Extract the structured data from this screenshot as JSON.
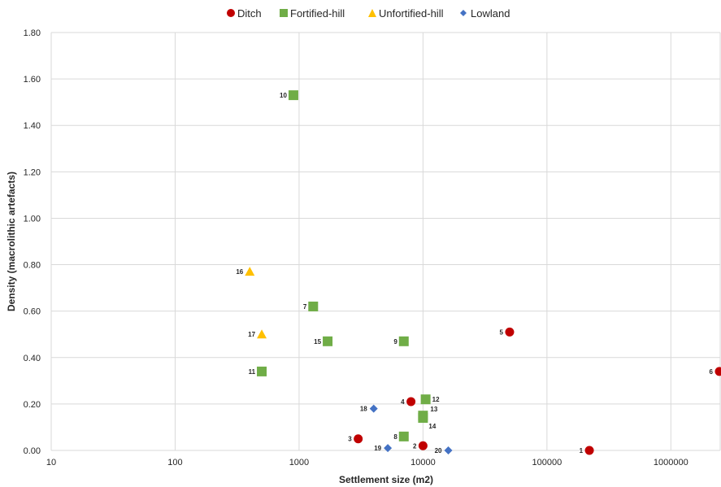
{
  "chart_data": {
    "type": "scatter",
    "x_scale": "log",
    "xlabel": "Settlement size (m2)",
    "ylabel": "Density (macrolithic artefacts)",
    "xlim": [
      10,
      2500000
    ],
    "ylim": [
      0,
      1.8
    ],
    "x_ticks": [
      "10",
      "100",
      "1000",
      "10000",
      "100000",
      "1000000"
    ],
    "y_ticks": [
      "0.00",
      "0.20",
      "0.40",
      "0.60",
      "0.80",
      "1.00",
      "1.20",
      "1.40",
      "1.60",
      "1.80"
    ],
    "grid": true,
    "legend_position": "top",
    "series": [
      {
        "name": "Ditch",
        "marker": "circle",
        "color": "#c00000",
        "points": [
          {
            "label": "1",
            "x": 220000,
            "y": 0.0
          },
          {
            "label": "2",
            "x": 10000,
            "y": 0.02
          },
          {
            "label": "3",
            "x": 3000,
            "y": 0.05
          },
          {
            "label": "4",
            "x": 8000,
            "y": 0.21
          },
          {
            "label": "5",
            "x": 50000,
            "y": 0.51
          },
          {
            "label": "6",
            "x": 2500000,
            "y": 0.34
          }
        ]
      },
      {
        "name": "Fortified-hill",
        "marker": "square",
        "color": "#70ad47",
        "points": [
          {
            "label": "7",
            "x": 1300,
            "y": 0.62
          },
          {
            "label": "8",
            "x": 7000,
            "y": 0.06
          },
          {
            "label": "9",
            "x": 7000,
            "y": 0.47
          },
          {
            "label": "10",
            "x": 900,
            "y": 1.53
          },
          {
            "label": "11",
            "x": 500,
            "y": 0.34
          },
          {
            "label": "12",
            "x": 10500,
            "y": 0.22
          },
          {
            "label": "13",
            "x": 10000,
            "y": 0.15
          },
          {
            "label": "14",
            "x": 10000,
            "y": 0.14
          },
          {
            "label": "15",
            "x": 1700,
            "y": 0.47
          }
        ]
      },
      {
        "name": "Unfortified-hill",
        "marker": "triangle",
        "color": "#ffc000",
        "points": [
          {
            "label": "16",
            "x": 400,
            "y": 0.77
          },
          {
            "label": "17",
            "x": 500,
            "y": 0.5
          }
        ]
      },
      {
        "name": "Lowland",
        "marker": "diamond",
        "color": "#4472c4",
        "points": [
          {
            "label": "18",
            "x": 4000,
            "y": 0.18
          },
          {
            "label": "19",
            "x": 5200,
            "y": 0.01
          },
          {
            "label": "20",
            "x": 16000,
            "y": 0.0
          }
        ]
      }
    ]
  }
}
